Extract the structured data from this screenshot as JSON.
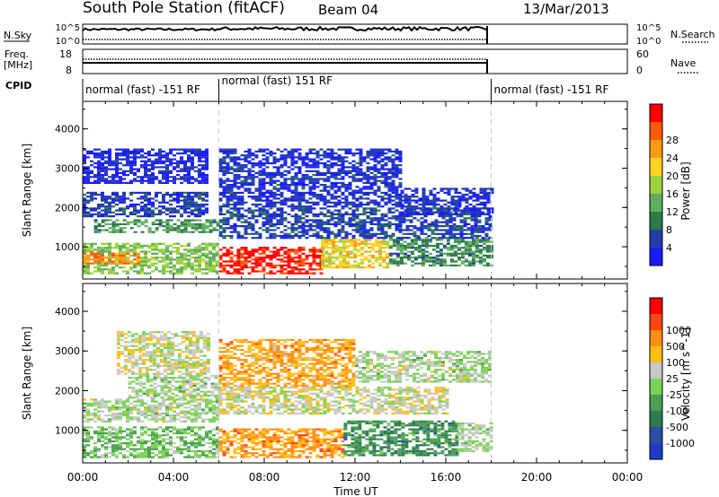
{
  "header": {
    "station": "South Pole Station (fitACF)",
    "beam": "Beam 04",
    "date": "13/Mar/2013"
  },
  "top_panels": {
    "nsky_label": "N.Sky",
    "nsky_ticks": [
      "10^5",
      "10^0"
    ],
    "nsearch_label": "N.Search",
    "nsearch_ticks": [
      "10^5",
      "10^0"
    ],
    "freq_label_1": "Freq.",
    "freq_label_2": "[MHz]",
    "freq_ticks": [
      "18",
      "8"
    ],
    "nave_label": "Nave",
    "nave_ticks": [
      "60",
      "0"
    ],
    "cpid_label": "CPID"
  },
  "cpid_segments": [
    {
      "label": "normal (fast) -151 RF",
      "start_hour": 0,
      "end_hour": 6
    },
    {
      "label": "normal (fast) 151 RF",
      "start_hour": 6,
      "end_hour": 18
    },
    {
      "label": "normal (fast) -151 RF",
      "start_hour": 18,
      "end_hour": 24
    }
  ],
  "colors": {
    "power": [
      "#1a1aff",
      "#1e3ea8",
      "#2e7a46",
      "#5fae5f",
      "#9bd13c",
      "#ffd21e",
      "#ff9a14",
      "#ff5a0a",
      "#ff0000"
    ],
    "velocity": [
      "#1e3cc8",
      "#2a4ea5",
      "#2e7a50",
      "#4aa050",
      "#7ad255",
      "#c8c8c8",
      "#ffbe14",
      "#ff8c14",
      "#ff4614",
      "#ff0000"
    ]
  },
  "chart_data": [
    {
      "type": "heatmap",
      "title": "",
      "ylabel": "Slant Range [km]",
      "xlabel": "",
      "x_range_hours": [
        0,
        24
      ],
      "ylim": [
        180,
        4700
      ],
      "yticks": [
        1000,
        2000,
        3000,
        4000
      ],
      "colorbar_label": "Power [dB]",
      "colorbar_ticks": [
        "4",
        "8",
        "12",
        "16",
        "20",
        "24",
        "28"
      ],
      "data_end_hour": 18,
      "regions": [
        {
          "x": [
            0.0,
            6.0
          ],
          "y": [
            300,
            1100
          ],
          "level": 0.45
        },
        {
          "x": [
            0.0,
            2.5
          ],
          "y": [
            550,
            850
          ],
          "level": 0.75
        },
        {
          "x": [
            0.5,
            6.0
          ],
          "y": [
            1350,
            1700
          ],
          "level": 0.32
        },
        {
          "x": [
            0.0,
            5.5
          ],
          "y": [
            1750,
            2400
          ],
          "level": 0.14
        },
        {
          "x": [
            0.0,
            5.5
          ],
          "y": [
            2600,
            3500
          ],
          "level": 0.08
        },
        {
          "x": [
            6.0,
            10.5
          ],
          "y": [
            300,
            1000
          ],
          "level": 0.94
        },
        {
          "x": [
            10.5,
            13.5
          ],
          "y": [
            450,
            1200
          ],
          "level": 0.6
        },
        {
          "x": [
            13.5,
            18.0
          ],
          "y": [
            500,
            1250
          ],
          "level": 0.3
        },
        {
          "x": [
            6.0,
            18.0
          ],
          "y": [
            1200,
            2000
          ],
          "level": 0.16
        },
        {
          "x": [
            6.0,
            14.0
          ],
          "y": [
            2000,
            3500
          ],
          "level": 0.12
        },
        {
          "x": [
            14.0,
            18.0
          ],
          "y": [
            1800,
            2500
          ],
          "level": 0.1
        }
      ]
    },
    {
      "type": "heatmap",
      "title": "",
      "ylabel": "Slant Range [km]",
      "xlabel": "Time UT",
      "x_range_hours": [
        0,
        24
      ],
      "xticks": [
        "00:00",
        "04:00",
        "08:00",
        "12:00",
        "16:00",
        "20:00",
        "00:00"
      ],
      "ylim": [
        180,
        4700
      ],
      "yticks": [
        1000,
        2000,
        3000,
        4000
      ],
      "colorbar_label": "Velocity [m s^-1]",
      "colorbar_ticks": [
        "1000",
        "500",
        "100",
        "25",
        "-25",
        "-100",
        "-500",
        "-1000"
      ],
      "data_end_hour": 18,
      "regions": [
        {
          "x": [
            0.0,
            6.0
          ],
          "y": [
            300,
            1100
          ],
          "level": 0.42
        },
        {
          "x": [
            0.0,
            6.0
          ],
          "y": [
            1200,
            1800
          ],
          "level": 0.5
        },
        {
          "x": [
            2.0,
            6.0
          ],
          "y": [
            1800,
            2400
          ],
          "level": 0.5
        },
        {
          "x": [
            1.5,
            5.5
          ],
          "y": [
            2400,
            3500
          ],
          "level": 0.55
        },
        {
          "x": [
            6.0,
            11.5
          ],
          "y": [
            300,
            1050
          ],
          "level": 0.72
        },
        {
          "x": [
            11.5,
            16.5
          ],
          "y": [
            350,
            1250
          ],
          "level": 0.3
        },
        {
          "x": [
            16.5,
            18.0
          ],
          "y": [
            450,
            1200
          ],
          "level": 0.5
        },
        {
          "x": [
            6.0,
            16.0
          ],
          "y": [
            1400,
            2100
          ],
          "level": 0.55
        },
        {
          "x": [
            6.0,
            12.0
          ],
          "y": [
            2100,
            3300
          ],
          "level": 0.7
        },
        {
          "x": [
            12.0,
            18.0
          ],
          "y": [
            2200,
            3000
          ],
          "level": 0.5
        }
      ]
    }
  ]
}
